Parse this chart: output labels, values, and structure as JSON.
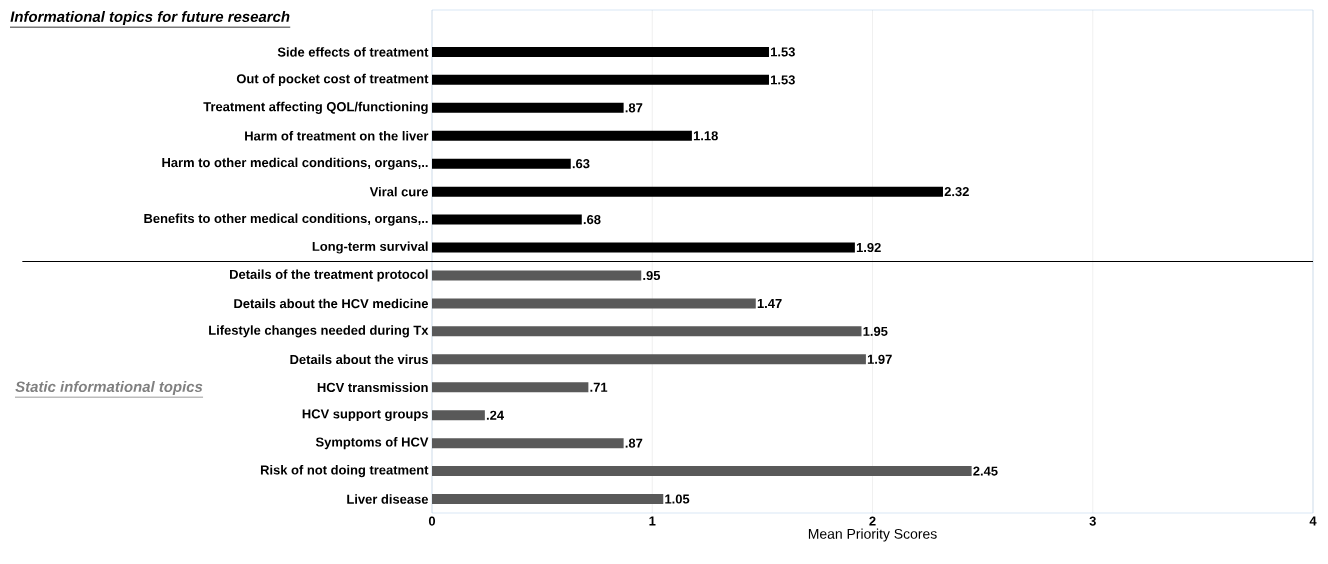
{
  "chart_data": {
    "type": "bar",
    "orientation": "horizontal",
    "xlabel": "Mean Priority Scores",
    "categories": [
      "Side effects of treatment",
      "Out of pocket cost of treatment",
      "Treatment affecting QOL/functioning",
      "Harm of treatment on the liver",
      "Harm to other medical conditions, organs,..",
      "Viral cure",
      "Benefits to other medical conditions, organs,..",
      "Long-term survival",
      "Details of the treatment protocol",
      "Details about the HCV medicine",
      "Lifestyle changes needed during Tx",
      "Details about the virus",
      "HCV transmission",
      "HCV support groups",
      "Symptoms of HCV",
      "Risk of not doing treatment",
      "Liver disease"
    ],
    "values": [
      1.53,
      1.53,
      0.87,
      1.18,
      0.63,
      2.32,
      0.68,
      1.92,
      0.95,
      1.47,
      1.95,
      1.97,
      0.71,
      0.24,
      0.87,
      2.45,
      1.05
    ],
    "value_labels": [
      "1.53",
      "1.53",
      ".87",
      "1.18",
      ".63",
      "2.32",
      ".68",
      "1.92",
      ".95",
      "1.47",
      "1.95",
      "1.97",
      ".71",
      ".24",
      ".87",
      "2.45",
      "1.05"
    ],
    "colors": [
      "#000000",
      "#000000",
      "#000000",
      "#000000",
      "#000000",
      "#000000",
      "#000000",
      "#000000",
      "#595959",
      "#595959",
      "#595959",
      "#595959",
      "#595959",
      "#595959",
      "#595959",
      "#595959",
      "#595959"
    ],
    "xlim": [
      0,
      4
    ],
    "xticks": [
      0,
      1,
      2,
      3,
      4
    ],
    "grid": "x",
    "ref_lines": [
      {
        "axis": "y",
        "value": "Long-term survival",
        "color": "#000000"
      }
    ],
    "annotations": [
      "Informational topics for future research",
      "Static informational topics"
    ]
  }
}
